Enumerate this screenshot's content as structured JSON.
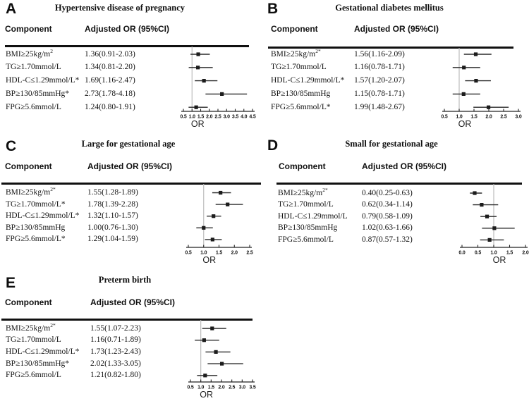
{
  "figure": {
    "axis_label": "OR",
    "colors": {
      "background": "#ffffff",
      "text": "#141414",
      "marker": "#1c1c1c",
      "ci_line": "#2a2a2a",
      "reference_line": "#bcbcbc",
      "header_rule": "#101010",
      "axis": "#222222"
    }
  },
  "columns": {
    "component": "Component",
    "adjusted_or": "Adjusted OR (95%CI)"
  },
  "chart_data": [
    {
      "panel": "A",
      "type": "scatter",
      "subtype": "forest-plot",
      "title": "Hypertensive disease of pregnancy",
      "xlabel": "OR",
      "xlim": [
        0.5,
        4.5
      ],
      "xticks": [
        0.5,
        1.0,
        1.5,
        2.0,
        2.5,
        3.0,
        3.5,
        4.0,
        4.5
      ],
      "reference_x": 1.0,
      "rows": [
        {
          "component": "BMI≥25kg/m",
          "component_sup": "2",
          "or_text": "1.36(0.91-2.03)",
          "or": 1.36,
          "ci_low": 0.91,
          "ci_high": 2.03
        },
        {
          "component": "TG≥1.70mmol/L",
          "component_sup": "",
          "or_text": "1.34(0.81-2.20)",
          "or": 1.34,
          "ci_low": 0.81,
          "ci_high": 2.2
        },
        {
          "component": "HDL-C≤1.29mmol/L*",
          "component_sup": "",
          "or_text": "1.69(1.16-2.47)",
          "or": 1.69,
          "ci_low": 1.16,
          "ci_high": 2.47
        },
        {
          "component": "BP≥130/85mmHg*",
          "component_sup": "",
          "or_text": "2.73(1.78-4.18)",
          "or": 2.73,
          "ci_low": 1.78,
          "ci_high": 4.18
        },
        {
          "component": "FPG≥5.6mmol/L",
          "component_sup": "",
          "or_text": "1.24(0.80-1.91)",
          "or": 1.24,
          "ci_low": 0.8,
          "ci_high": 1.91
        }
      ]
    },
    {
      "panel": "B",
      "type": "scatter",
      "subtype": "forest-plot",
      "title": "Gestational diabetes mellitus",
      "xlabel": "OR",
      "xlim": [
        0.5,
        3.0
      ],
      "xticks": [
        0.5,
        1.0,
        1.5,
        2.0,
        2.5,
        3.0
      ],
      "reference_x": 1.0,
      "rows": [
        {
          "component": "BMI≥25kg/m",
          "component_sup": "2*",
          "or_text": "1.56(1.16-2.09)",
          "or": 1.56,
          "ci_low": 1.16,
          "ci_high": 2.09
        },
        {
          "component": "TG≥1.70mmol/L",
          "component_sup": "",
          "or_text": "1.16(0.78-1.71)",
          "or": 1.16,
          "ci_low": 0.78,
          "ci_high": 1.71
        },
        {
          "component": "HDL-C≤1.29mmol/L*",
          "component_sup": "",
          "or_text": "1.57(1.20-2.07)",
          "or": 1.57,
          "ci_low": 1.2,
          "ci_high": 2.07
        },
        {
          "component": "BP≥130/85mmHg",
          "component_sup": "",
          "or_text": "1.15(0.78-1.71)",
          "or": 1.15,
          "ci_low": 0.78,
          "ci_high": 1.71
        },
        {
          "component": "FPG≥5.6mmol/L*",
          "component_sup": "",
          "or_text": "1.99(1.48-2.67)",
          "or": 1.99,
          "ci_low": 1.48,
          "ci_high": 2.67
        }
      ]
    },
    {
      "panel": "C",
      "type": "scatter",
      "subtype": "forest-plot",
      "title": "Large for gestational age",
      "xlabel": "OR",
      "xlim": [
        0.5,
        2.5
      ],
      "xticks": [
        0.5,
        1.0,
        1.5,
        2.0,
        2.5
      ],
      "reference_x": 1.0,
      "rows": [
        {
          "component": "BMI≥25kg/m",
          "component_sup": "2*",
          "or_text": "1.55(1.28-1.89)",
          "or": 1.55,
          "ci_low": 1.28,
          "ci_high": 1.89
        },
        {
          "component": "TG≥1.70mmol/L*",
          "component_sup": "",
          "or_text": "1.78(1.39-2.28)",
          "or": 1.78,
          "ci_low": 1.39,
          "ci_high": 2.28
        },
        {
          "component": "HDL-C≤1.29mmol/L*",
          "component_sup": "",
          "or_text": "1.32(1.10-1.57)",
          "or": 1.32,
          "ci_low": 1.1,
          "ci_high": 1.57
        },
        {
          "component": "BP≥130/85mmHg",
          "component_sup": "",
          "or_text": "1.00(0.76-1.30)",
          "or": 1.0,
          "ci_low": 0.76,
          "ci_high": 1.3
        },
        {
          "component": "FPG≥5.6mmol/L*",
          "component_sup": "",
          "or_text": "1.29(1.04-1.59)",
          "or": 1.29,
          "ci_low": 1.04,
          "ci_high": 1.59
        }
      ]
    },
    {
      "panel": "D",
      "type": "scatter",
      "subtype": "forest-plot",
      "title": "Small for gestational age",
      "xlabel": "OR",
      "xlim": [
        0.0,
        2.0
      ],
      "xticks": [
        0.0,
        0.5,
        1.0,
        1.5,
        2.0
      ],
      "reference_x": 1.0,
      "rows": [
        {
          "component": "BMI≥25kg/m",
          "component_sup": "2*",
          "or_text": "0.40(0.25-0.63)",
          "or": 0.4,
          "ci_low": 0.25,
          "ci_high": 0.63
        },
        {
          "component": "TG≥1.70mmol/L",
          "component_sup": "",
          "or_text": "0.62(0.34-1.14)",
          "or": 0.62,
          "ci_low": 0.34,
          "ci_high": 1.14
        },
        {
          "component": "HDL-C≤1.29mmol/L",
          "component_sup": "",
          "or_text": "0.79(0.58-1.09)",
          "or": 0.79,
          "ci_low": 0.58,
          "ci_high": 1.09
        },
        {
          "component": "BP≥130/85mmHg",
          "component_sup": "",
          "or_text": "1.02(0.63-1.66)",
          "or": 1.02,
          "ci_low": 0.63,
          "ci_high": 1.66
        },
        {
          "component": "FPG≥5.6mmol/L",
          "component_sup": "",
          "or_text": "0.87(0.57-1.32)",
          "or": 0.87,
          "ci_low": 0.57,
          "ci_high": 1.32
        }
      ]
    },
    {
      "panel": "E",
      "type": "scatter",
      "subtype": "forest-plot",
      "title": "Preterm birth",
      "xlabel": "OR",
      "xlim": [
        0.5,
        3.5
      ],
      "xticks": [
        0.5,
        1.0,
        1.5,
        2.0,
        2.5,
        3.0,
        3.5
      ],
      "reference_x": 1.0,
      "rows": [
        {
          "component": "BMI≥25kg/m",
          "component_sup": "2*",
          "or_text": "1.55(1.07-2.23)",
          "or": 1.55,
          "ci_low": 1.07,
          "ci_high": 2.23
        },
        {
          "component": "TG≥1.70mmol/L",
          "component_sup": "",
          "or_text": "1.16(0.71-1.89)",
          "or": 1.16,
          "ci_low": 0.71,
          "ci_high": 1.89
        },
        {
          "component": "HDL-C≤1.29mmol/L*",
          "component_sup": "",
          "or_text": "1.73(1.23-2.43)",
          "or": 1.73,
          "ci_low": 1.23,
          "ci_high": 2.43
        },
        {
          "component": "BP≥130/85mmHg*",
          "component_sup": "",
          "or_text": "2.02(1.33-3.05)",
          "or": 2.02,
          "ci_low": 1.33,
          "ci_high": 3.05
        },
        {
          "component": "FPG≥5.6mmol/L",
          "component_sup": "",
          "or_text": "1.21(0.82-1.80)",
          "or": 1.21,
          "ci_low": 0.82,
          "ci_high": 1.8
        }
      ]
    }
  ]
}
